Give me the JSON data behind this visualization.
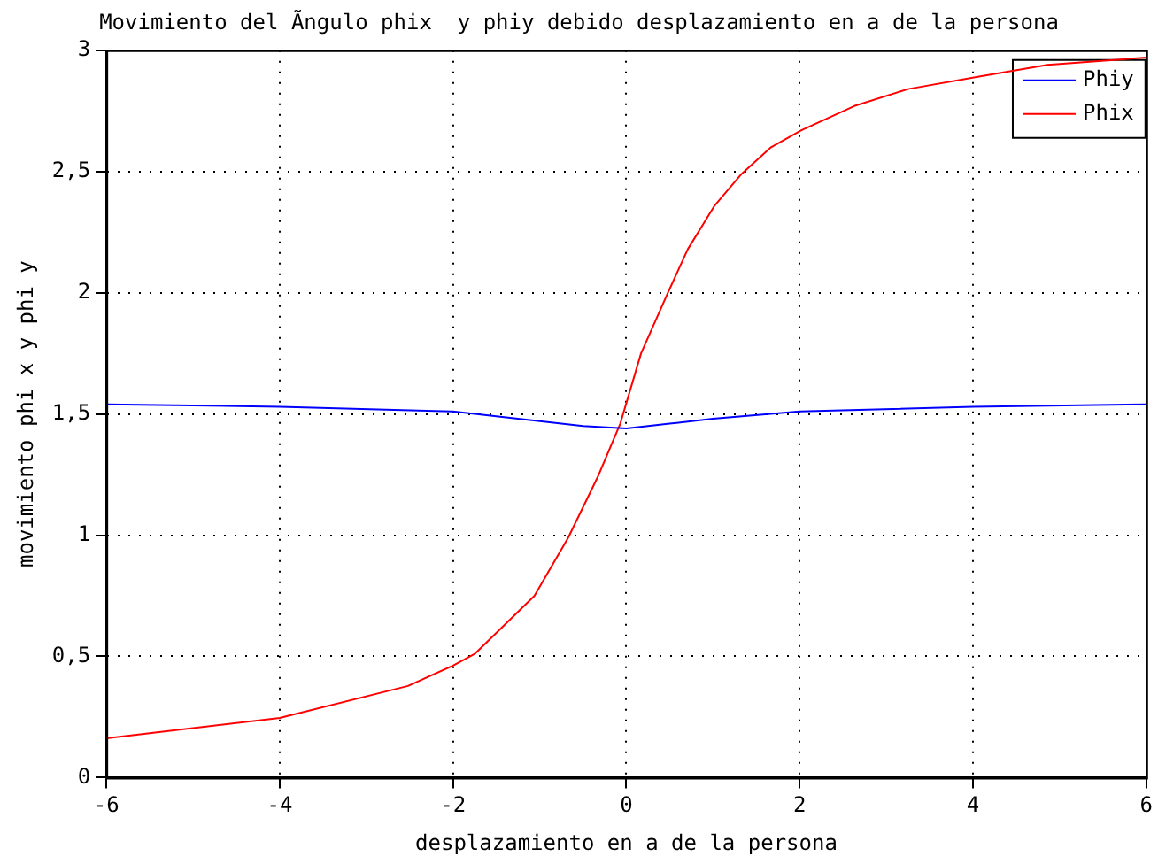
{
  "chart_data": {
    "type": "line",
    "title": "Movimiento del Ãngulo phix  y phiy debido desplazamiento en a de la persona",
    "xlabel": "desplazamiento en a de la persona",
    "ylabel": "movimiento phi x y phi y",
    "series": [
      {
        "name": "Phiy",
        "color": "#0000ff",
        "x": [
          -6,
          -4,
          -2,
          -1,
          -0.5,
          0,
          0.5,
          1,
          2,
          4,
          6
        ],
        "values": [
          1.54,
          1.53,
          1.51,
          1.47,
          1.45,
          1.44,
          1.46,
          1.48,
          1.51,
          1.53,
          1.54
        ]
      },
      {
        "name": "Phix",
        "color": "#ff0000",
        "x": [
          -6,
          -4,
          -2.52,
          -2,
          -1.75,
          -1.06,
          -0.67,
          -0.33,
          -0.07,
          0.17,
          0.48,
          0.71,
          1.02,
          1.33,
          1.67,
          2.02,
          2.63,
          3.25,
          4.04,
          4.86,
          6
        ],
        "values": [
          0.162,
          0.246,
          0.378,
          0.462,
          0.51,
          0.75,
          0.99,
          1.24,
          1.46,
          1.75,
          2.0,
          2.18,
          2.36,
          2.49,
          2.6,
          2.67,
          2.77,
          2.84,
          2.89,
          2.94,
          2.97
        ]
      }
    ],
    "xlim": [
      -6,
      6
    ],
    "xticks": [
      -6,
      -4,
      -2,
      0,
      2,
      4,
      6
    ],
    "ylim": [
      0,
      3
    ],
    "yticks": [
      0,
      {
        "value": 0.5,
        "label": "0,5"
      },
      1,
      {
        "value": 1.5,
        "label": "1,5"
      },
      2,
      {
        "value": 2.5,
        "label": "2,5"
      },
      3
    ],
    "grid": true,
    "legend": "top right",
    "marker": "none",
    "line_style": "solid"
  }
}
